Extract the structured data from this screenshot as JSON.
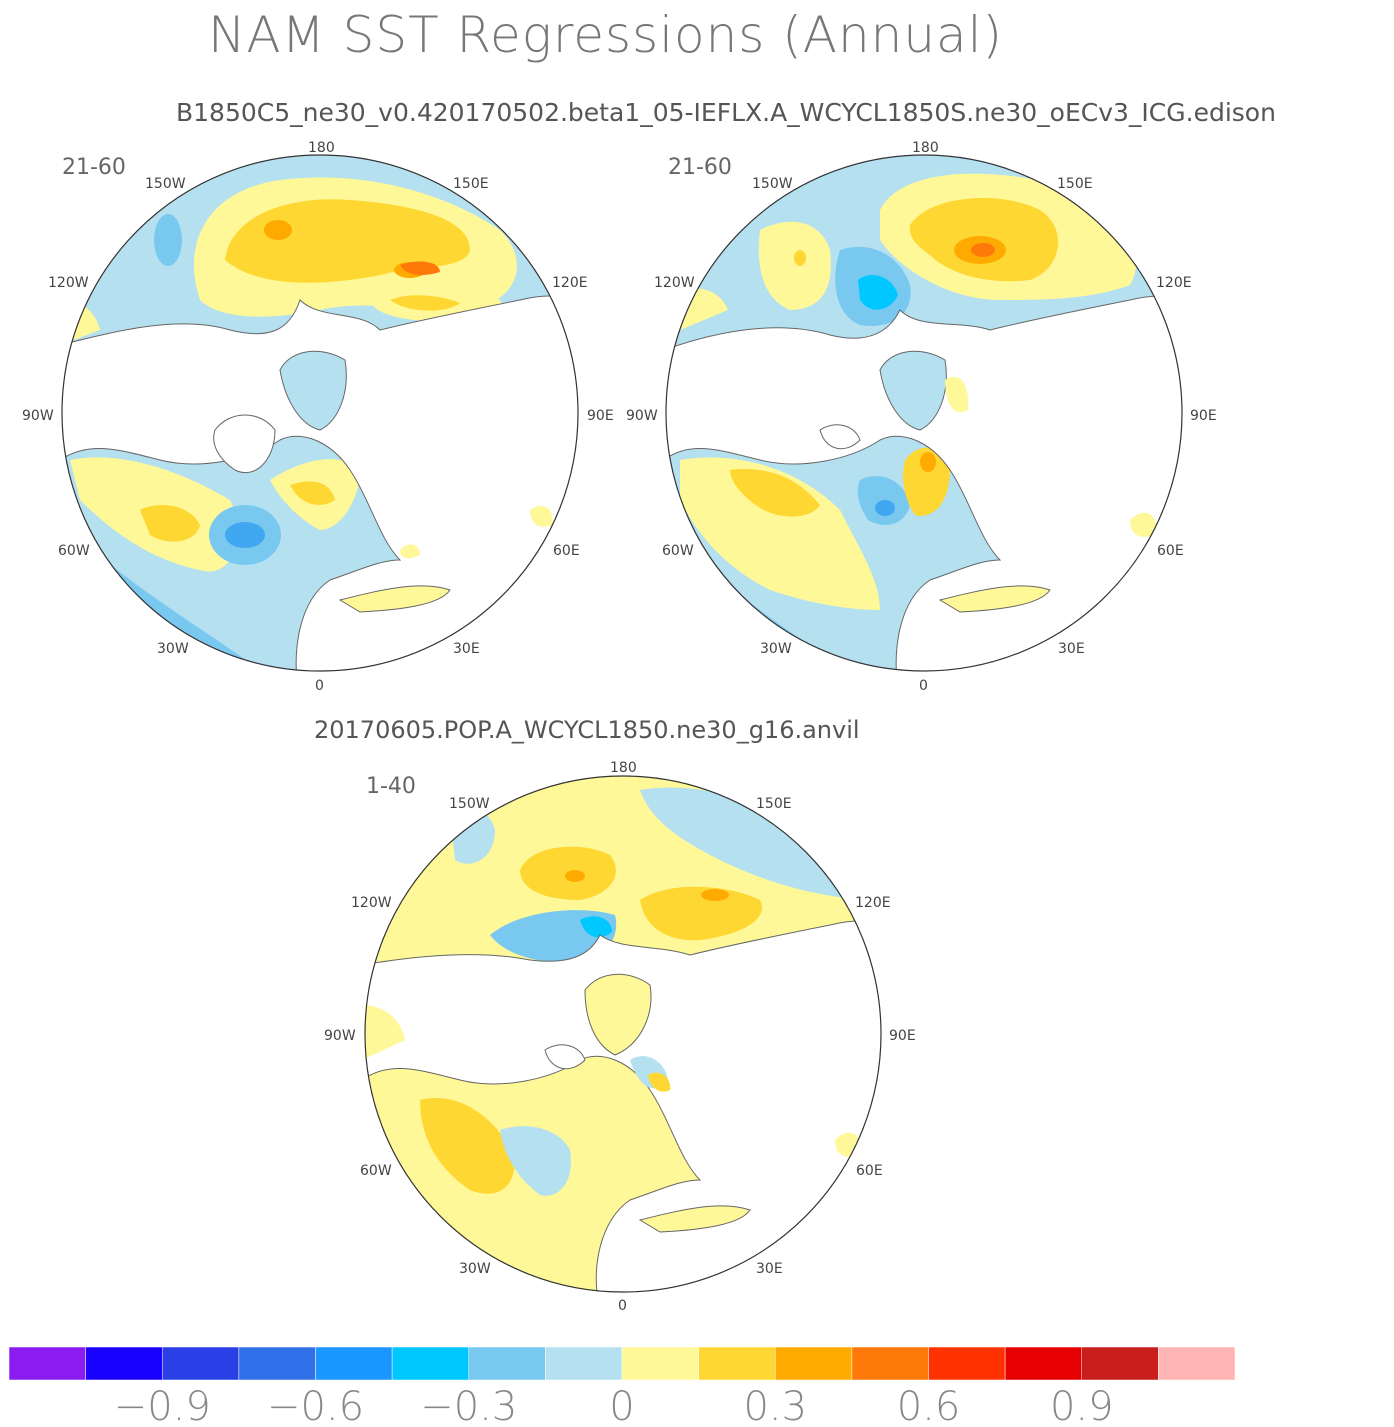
{
  "title": "NAM SST Regressions (Annual)",
  "subtitle_top": "B1850C5_ne30_v0.420170502.beta1_05-IEFLX.A_WCYCL1850S.ne30_oECv3_ICG.edison",
  "subtitle_bottom": "20170605.POP.A_WCYCL1850.ne30_g16.anvil",
  "maps": [
    {
      "name": "top-left",
      "years": "21-60"
    },
    {
      "name": "top-right",
      "years": "21-60"
    },
    {
      "name": "bottom",
      "years": "1-40"
    }
  ],
  "longitude_labels": {
    "n180": "180",
    "w150": "150W",
    "e150": "150E",
    "w120": "120W",
    "e120": "120E",
    "w90": "90W",
    "e90": "90E",
    "w60": "60W",
    "e60": "60E",
    "w30": "30W",
    "e30": "30E",
    "n0": "0"
  },
  "colorbar": {
    "colors": [
      "#8a1cf0",
      "#1a00ff",
      "#2a40e6",
      "#3070e8",
      "#1a96ff",
      "#00c8ff",
      "#78c8f0",
      "#b4e0f0",
      "#fff898",
      "#ffd732",
      "#ffaa00",
      "#ff780a",
      "#ff3200",
      "#e60000",
      "#c81e1e",
      "#ffb4b4"
    ],
    "tick_labels": [
      "-0.9",
      "-0.6",
      "-0.3",
      "0",
      "0.3",
      "0.6",
      "0.9"
    ]
  }
}
